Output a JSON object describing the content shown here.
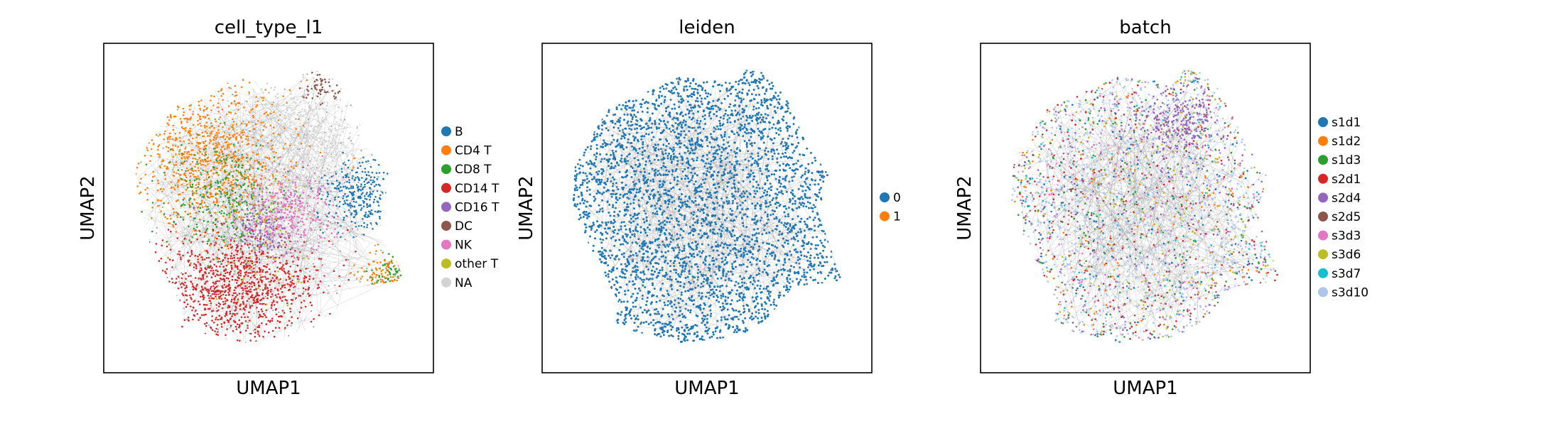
{
  "chart_data": [
    {
      "type": "scatter",
      "title": "cell_type_l1",
      "xlabel": "UMAP1",
      "ylabel": "UMAP2",
      "grid": false,
      "legend_position": "right",
      "overlay": "gray PAGA/kNN connectivity edges drawn beneath points",
      "series": [
        {
          "name": "B",
          "color": "#1f77b4"
        },
        {
          "name": "CD4 T",
          "color": "#ff7f0e"
        },
        {
          "name": "CD8 T",
          "color": "#2ca02c"
        },
        {
          "name": "CD14 T",
          "color": "#d62728"
        },
        {
          "name": "CD16 T",
          "color": "#9467bd"
        },
        {
          "name": "DC",
          "color": "#8c564b"
        },
        {
          "name": "NK",
          "color": "#e377c2"
        },
        {
          "name": "other T",
          "color": "#bcbd22"
        },
        {
          "name": "NA",
          "color": "#d3d3d3"
        }
      ]
    },
    {
      "type": "scatter",
      "title": "leiden",
      "xlabel": "UMAP1",
      "ylabel": "UMAP2",
      "grid": false,
      "legend_position": "right",
      "overlay": "gray PAGA/kNN connectivity edges drawn beneath points",
      "series": [
        {
          "name": "0",
          "color": "#1f77b4"
        },
        {
          "name": "1",
          "color": "#ff7f0e"
        }
      ]
    },
    {
      "type": "scatter",
      "title": "batch",
      "xlabel": "UMAP1",
      "ylabel": "UMAP2",
      "grid": false,
      "legend_position": "right",
      "overlay": "gray PAGA/kNN connectivity edges drawn beneath points",
      "series": [
        {
          "name": "s1d1",
          "color": "#1f77b4"
        },
        {
          "name": "s1d2",
          "color": "#ff7f0e"
        },
        {
          "name": "s1d3",
          "color": "#2ca02c"
        },
        {
          "name": "s2d1",
          "color": "#d62728"
        },
        {
          "name": "s2d4",
          "color": "#9467bd"
        },
        {
          "name": "s2d5",
          "color": "#8c564b"
        },
        {
          "name": "s3d3",
          "color": "#e377c2"
        },
        {
          "name": "s3d6",
          "color": "#bcbd22"
        },
        {
          "name": "s3d7",
          "color": "#17becf"
        },
        {
          "name": "s3d10",
          "color": "#aec7e8"
        }
      ]
    }
  ]
}
